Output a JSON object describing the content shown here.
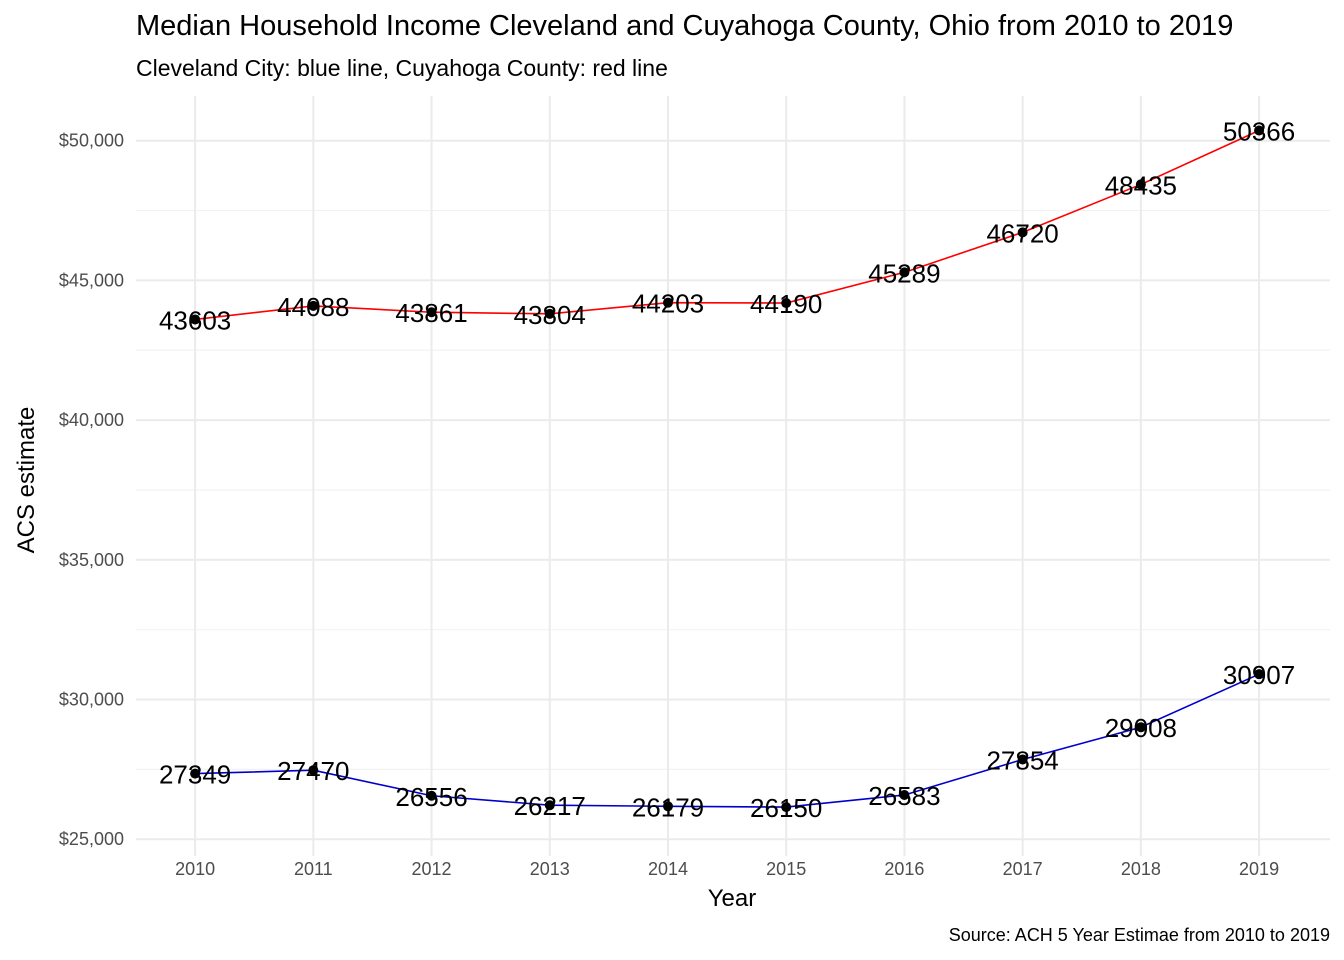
{
  "chart_data": {
    "type": "line",
    "title": "Median Household Income Cleveland and Cuyahoga County, Ohio from 2010 to 2019",
    "subtitle": "Cleveland City: blue line, Cuyahoga County: red line",
    "xlabel": "Year",
    "ylabel": "ACS estimate",
    "caption": "Source: ACH 5 Year Estimae from 2010 to 2019",
    "x": [
      2010,
      2011,
      2012,
      2013,
      2014,
      2015,
      2016,
      2017,
      2018,
      2019
    ],
    "xlim": [
      2009.5,
      2019.6
    ],
    "ylim": [
      24400,
      51600
    ],
    "yticks": [
      25000,
      30000,
      35000,
      40000,
      45000,
      50000
    ],
    "ytick_labels": [
      "$25,000",
      "$30,000",
      "$35,000",
      "$40,000",
      "$45,000",
      "$50,000"
    ],
    "grid": true,
    "series": [
      {
        "color": "#ff0000",
        "values": [
          43603,
          44088,
          43861,
          43804,
          44203,
          44190,
          45289,
          46720,
          48435,
          50366
        ],
        "labels": [
          "43603",
          "44088",
          "43861",
          "43804",
          "44203",
          "44190",
          "45289",
          "46720",
          "48435",
          "50366"
        ]
      },
      {
        "color": "#0000cc",
        "values": [
          27349,
          27470,
          26556,
          26217,
          26179,
          26150,
          26583,
          27854,
          29008,
          30907
        ],
        "labels": [
          "27349",
          "27470",
          "26556",
          "26217",
          "26179",
          "26150",
          "26583",
          "27854",
          "29008",
          "30907"
        ]
      }
    ]
  }
}
